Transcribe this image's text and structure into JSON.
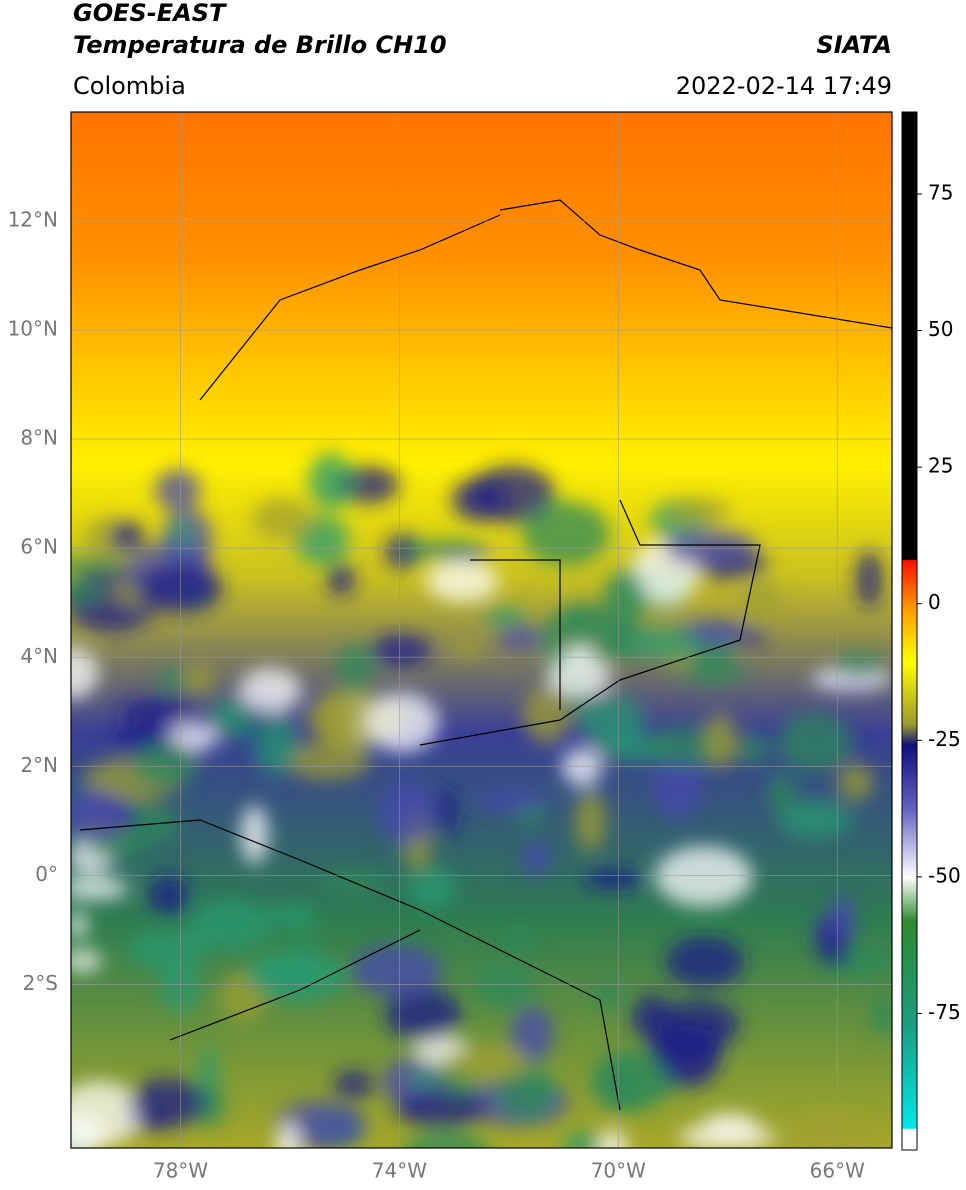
{
  "header": {
    "title": "GOES-EAST",
    "subtitle": "Temperatura de Brillo CH10",
    "source": "SIATA",
    "region": "Colombia",
    "datetime": "2022-02-14 17:49"
  },
  "map": {
    "lonlim": [
      -80,
      -65
    ],
    "latlim": [
      -5,
      14
    ],
    "lonticks": [
      {
        "value": -78,
        "label": "78°W"
      },
      {
        "value": -74,
        "label": "74°W"
      },
      {
        "value": -70,
        "label": "70°W"
      },
      {
        "value": -66,
        "label": "66°W"
      }
    ],
    "latticks": [
      {
        "value": 12,
        "label": "12°N"
      },
      {
        "value": 10,
        "label": "10°N"
      },
      {
        "value": 8,
        "label": "8°N"
      },
      {
        "value": 6,
        "label": "6°N"
      },
      {
        "value": 4,
        "label": "4°N"
      },
      {
        "value": 2,
        "label": "2°N"
      },
      {
        "value": 0,
        "label": "0°"
      },
      {
        "value": -2,
        "label": "2°S"
      }
    ],
    "grid": true
  },
  "colorbar": {
    "lim": [
      -100,
      90
    ],
    "ticks": [
      75,
      50,
      25,
      0,
      -25,
      -50,
      -75
    ]
  }
}
